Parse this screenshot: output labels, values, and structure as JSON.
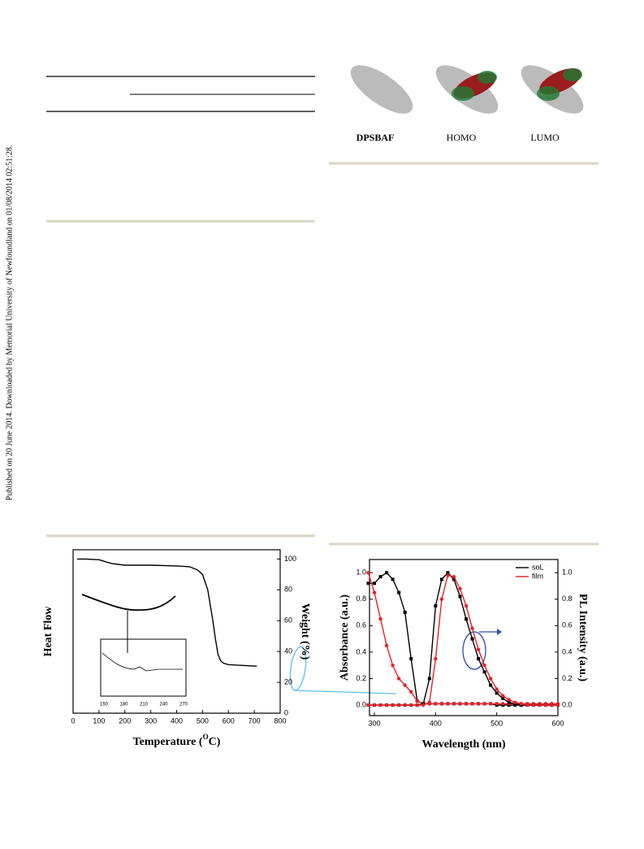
{
  "sidebar": "Published on 20 June 2014. Downloaded by Memorial University of Newfoundland on 01/08/2014 02:51:28.",
  "molecule_labels": [
    "DPSBAF",
    "HOMO",
    "LUMO"
  ],
  "chart_data": [
    {
      "type": "line",
      "ylabel": "Heat Flow",
      "y2label": "Weight (%)",
      "xlabel": [
        "Temperature (",
        "O",
        "C)"
      ],
      "xlim": [
        0,
        800
      ],
      "xticks": [
        0,
        100,
        200,
        300,
        400,
        500,
        600,
        700,
        800
      ],
      "y2lim": [
        0,
        106
      ],
      "y2ticks": [
        0,
        20,
        40,
        60,
        80,
        100
      ],
      "x": [
        15,
        50,
        100,
        150,
        200,
        300,
        400,
        450,
        480,
        500,
        520,
        540,
        550,
        560,
        570,
        580,
        600,
        650,
        710
      ],
      "series": [
        {
          "color": "#000000",
          "axis": "y2",
          "values": [
            100,
            100,
            99.5,
            97,
            96,
            96,
            95.5,
            95,
            93,
            90,
            80,
            60,
            48,
            38,
            34,
            32.5,
            31.5,
            31,
            30.5
          ]
        }
      ],
      "inset_xticks": [
        "150",
        "180",
        "210",
        "240",
        "270"
      ]
    },
    {
      "type": "line",
      "ylabel": "Absorbance (a.u.)",
      "y2label": "PL Intensity (a.u.)",
      "xlabel": [
        "Wavelength (nm)"
      ],
      "xlim": [
        292,
        600
      ],
      "xticks": [
        300,
        400,
        500,
        600
      ],
      "ylim": [
        -0.08,
        1.1
      ],
      "yticks": [
        {
          "value": 0,
          "label": "0.0"
        },
        {
          "value": 0.2,
          "label": "0.2"
        },
        {
          "value": 0.4,
          "label": "0.4"
        },
        {
          "value": 0.6,
          "label": "0.6"
        },
        {
          "value": 0.8,
          "label": "0.8"
        },
        {
          "value": 1,
          "label": "1.0"
        }
      ],
      "y2lim": [
        -0.08,
        1.1
      ],
      "y2ticks": [
        {
          "value": 0,
          "label": "0.0"
        },
        {
          "value": 0.2,
          "label": "0.2"
        },
        {
          "value": 0.4,
          "label": "0.4"
        },
        {
          "value": 0.6,
          "label": "0.6"
        },
        {
          "value": 0.8,
          "label": "0.8"
        },
        {
          "value": 1,
          "label": "1.0"
        }
      ],
      "legend": "upper right",
      "x": [
        290,
        300,
        310,
        320,
        330,
        340,
        350,
        360,
        370,
        380,
        390,
        400,
        410,
        420,
        430,
        440,
        450,
        460,
        470,
        480,
        490,
        500,
        510,
        520,
        530,
        540,
        550,
        560,
        570,
        580,
        590,
        600
      ],
      "series": [
        {
          "name": "soL",
          "color": "#000000",
          "marker": "square",
          "values": [
            0.92,
            0.92,
            0.97,
            1.0,
            0.95,
            0.85,
            0.7,
            0.35,
            0.03,
            0.01,
            0.01,
            0.01,
            0.01,
            0.01,
            0.01,
            0.01,
            0.01,
            0.01,
            0.01,
            0.01,
            0.01,
            0,
            0,
            0,
            0,
            0,
            0,
            0,
            0,
            0,
            0,
            0
          ]
        },
        {
          "name": "film",
          "color": "#e8202a",
          "marker": "circle",
          "values": [
            1.0,
            0.85,
            0.65,
            0.45,
            0.3,
            0.2,
            0.15,
            0.1,
            0.03,
            0.01,
            0.01,
            0.01,
            0.01,
            0.01,
            0.01,
            0.01,
            0.01,
            0.01,
            0.01,
            0.01,
            0.01,
            0.01,
            0.01,
            0.01,
            0.01,
            0.01,
            0.01,
            0.01,
            0.01,
            0.01,
            0.01,
            0.01
          ]
        },
        {
          "color": "#000000",
          "marker": "square",
          "axis": "y2",
          "values": [
            0,
            0,
            0,
            0,
            0,
            0,
            0,
            0,
            0,
            0.01,
            0.2,
            0.75,
            0.95,
            1.0,
            0.95,
            0.82,
            0.65,
            0.5,
            0.35,
            0.25,
            0.15,
            0.09,
            0.05,
            0.02,
            0.01,
            0,
            0,
            0,
            0,
            0,
            0,
            0
          ]
        },
        {
          "color": "#e8202a",
          "marker": "circle",
          "axis": "y2",
          "values": [
            0,
            0,
            0,
            0,
            0,
            0,
            0,
            0,
            0,
            0,
            0.02,
            0.35,
            0.8,
            0.98,
            0.97,
            0.88,
            0.75,
            0.58,
            0.42,
            0.3,
            0.2,
            0.12,
            0.07,
            0.04,
            0.02,
            0.01,
            0,
            0,
            0,
            0,
            0,
            0
          ]
        }
      ]
    }
  ]
}
